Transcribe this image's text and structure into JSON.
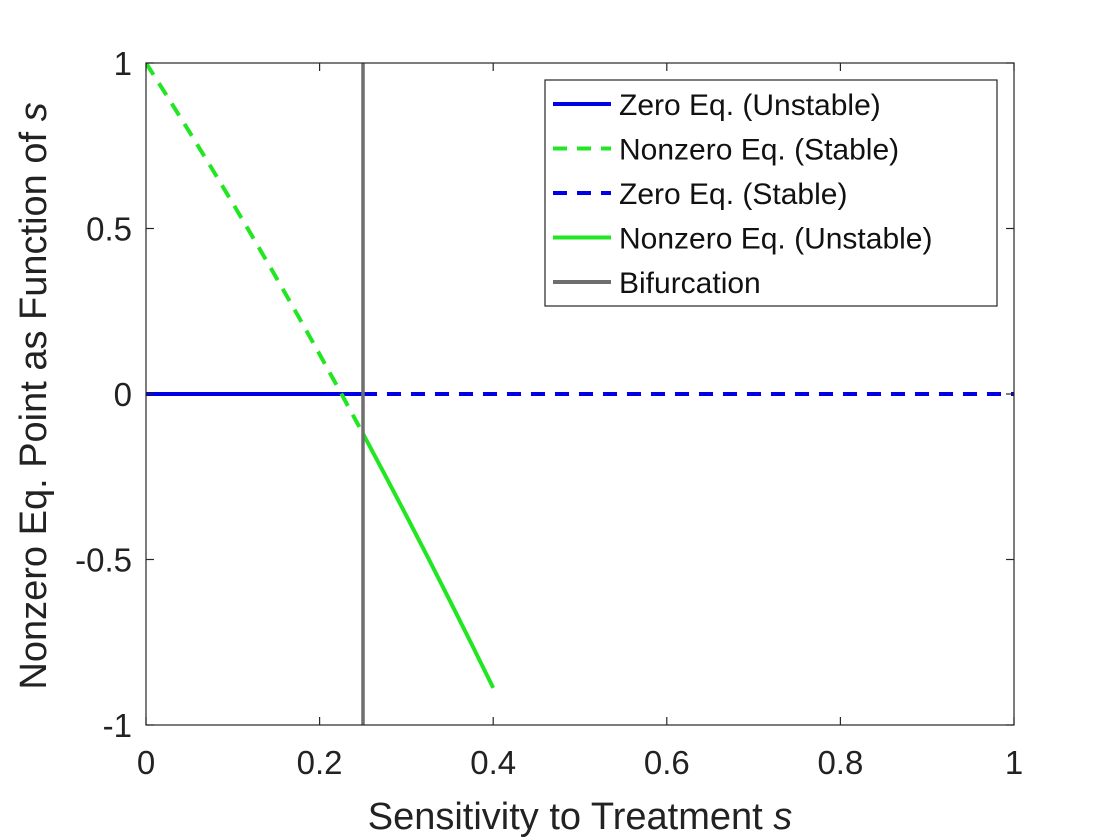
{
  "chart_data": {
    "type": "line",
    "xlabel": "Sensitivity to Treatment ",
    "xlabel_var": "s",
    "ylabel": "Nonzero Eq. Point as Function of ",
    "ylabel_var": "s",
    "xlim": [
      0,
      1
    ],
    "ylim": [
      -1,
      1
    ],
    "x_ticks": [
      "0",
      "0.2",
      "0.4",
      "0.6",
      "0.8",
      "1"
    ],
    "y_ticks": [
      "1",
      "0.5",
      "0",
      "-0.5",
      "-1"
    ],
    "grid": false,
    "legend_position": "top-right",
    "series": [
      {
        "name": "Zero Eq. (Unstable)",
        "color": "#0000e6",
        "style": "solid",
        "x": [
          0,
          0.25
        ],
        "y": [
          0,
          0
        ]
      },
      {
        "name": "Nonzero Eq. (Stable)",
        "color": "#22e622",
        "style": "dashed",
        "x": [
          0,
          0.025,
          0.05,
          0.075,
          0.1,
          0.125,
          0.15,
          0.175,
          0.2,
          0.225,
          0.25
        ],
        "y": [
          1,
          0.897,
          0.792,
          0.685,
          0.576,
          0.465,
          0.352,
          0.237,
          0.12,
          0.001,
          -0.12
        ]
      },
      {
        "name": "Zero Eq. (Stable)",
        "color": "#0000e6",
        "style": "dashed",
        "x": [
          0.25,
          1
        ],
        "y": [
          0,
          0
        ]
      },
      {
        "name": "Nonzero Eq. (Unstable)",
        "color": "#22e622",
        "style": "solid",
        "x": [
          0.25,
          0.275,
          0.3,
          0.325,
          0.35,
          0.375,
          0.4
        ],
        "y": [
          -0.12,
          -0.243,
          -0.368,
          -0.495,
          -0.624,
          -0.755,
          -0.888
        ]
      },
      {
        "name": "Bifurcation",
        "color": "#6e6e6e",
        "style": "solid",
        "x": [
          0.25,
          0.25
        ],
        "y": [
          1,
          -1
        ]
      }
    ]
  }
}
